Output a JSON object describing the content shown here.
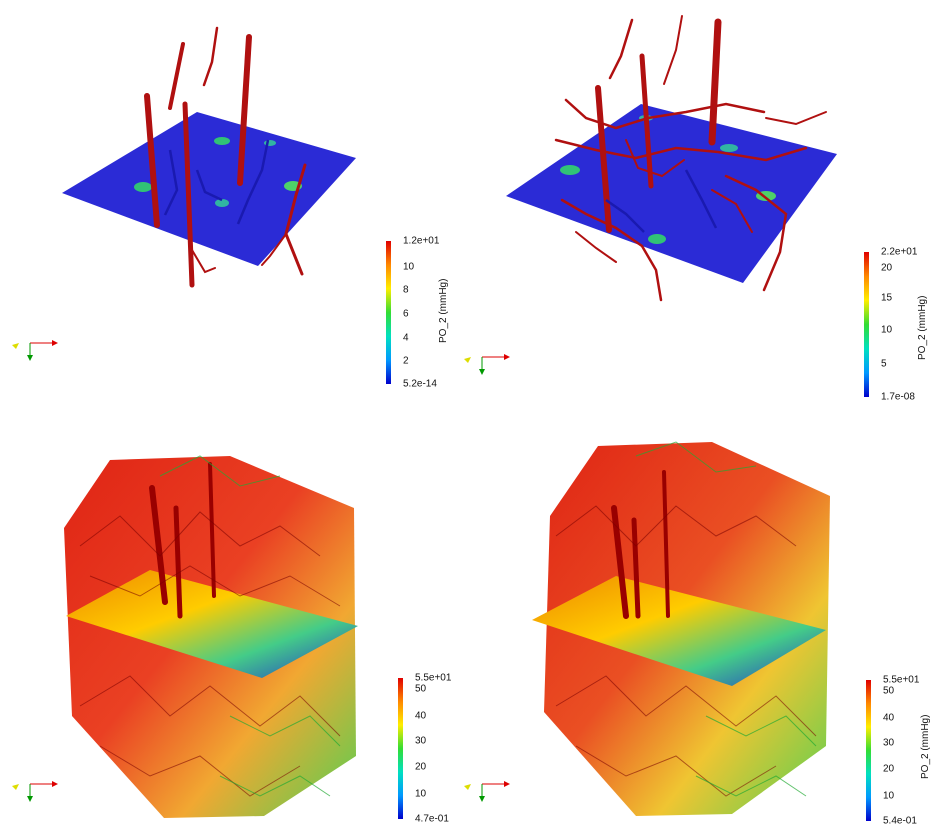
{
  "panels": [
    {
      "id": "top-left",
      "colorbar": {
        "title": "PO_2 (mmHg)",
        "max_label": "1.2e+01",
        "min_label": "5.2e-14",
        "ticks": [
          "10",
          "8",
          "6",
          "4",
          "2"
        ],
        "tick_values": [
          10,
          8,
          6,
          4,
          2
        ],
        "range": [
          0,
          12
        ]
      }
    },
    {
      "id": "top-right",
      "colorbar": {
        "title": "PO_2 (mmHg)",
        "max_label": "2.2e+01",
        "min_label": "1.7e-08",
        "ticks": [
          "20",
          "15",
          "10",
          "5"
        ],
        "tick_values": [
          20,
          15,
          10,
          5
        ],
        "range": [
          0,
          22
        ]
      }
    },
    {
      "id": "bottom-left",
      "colorbar": {
        "title": "",
        "max_label": "5.5e+01",
        "min_label": "4.7e-01",
        "ticks": [
          "50",
          "40",
          "30",
          "20",
          "10"
        ],
        "tick_values": [
          50,
          40,
          30,
          20,
          10
        ],
        "range": [
          0.47,
          55
        ]
      }
    },
    {
      "id": "bottom-right",
      "colorbar": {
        "title": "PO_2 (mmHg)",
        "max_label": "5.5e+01",
        "min_label": "5.4e-01",
        "ticks": [
          "50",
          "40",
          "30",
          "20",
          "10"
        ],
        "tick_values": [
          50,
          40,
          30,
          20,
          10
        ],
        "range": [
          0.54,
          55
        ]
      }
    }
  ],
  "colors": {
    "slice_blue": "#2b2bd6",
    "vessel_red": "#b01010",
    "colormap": [
      "#0000cc",
      "#0099ff",
      "#00e0c0",
      "#33dd33",
      "#ffee00",
      "#ff8800",
      "#e00000"
    ]
  }
}
